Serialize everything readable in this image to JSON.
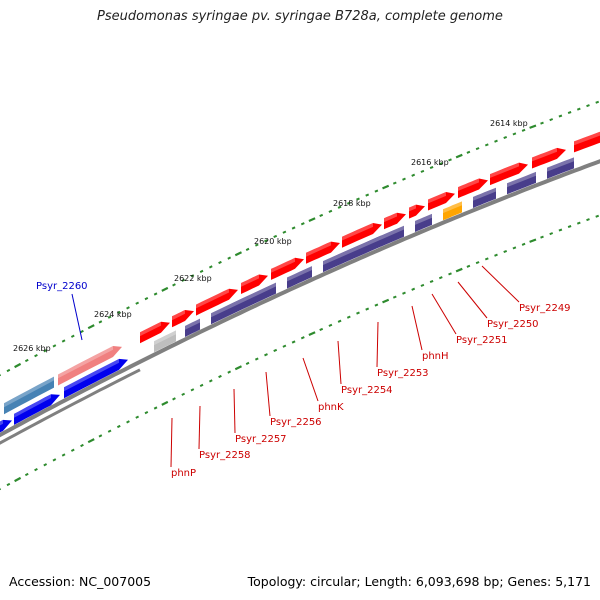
{
  "title": "Pseudomonas syringae pv. syringae B728a, complete genome",
  "footer": {
    "accession": "Accession: NC_007005",
    "summary": "Topology: circular; Length: 6,093,698 bp; Genes: 5,171"
  },
  "colors": {
    "scale_dots": "#2e8b2e",
    "backbone": "#808080",
    "gene_red": "#ff0000",
    "gene_pink": "#f08080",
    "gene_blue": "#0000ee",
    "gene_steel": "#4682b4",
    "gene_navy": "#483d8b",
    "gene_orange": "#ffa500",
    "gene_gray": "#bebebe",
    "label_red": "#cc0000",
    "label_blue": "#0000cc"
  },
  "scale": {
    "unit": "kbp",
    "ticks": [
      {
        "label": "2614 kbp"
      },
      {
        "label": "2616 kbp"
      },
      {
        "label": "2618 kbp"
      },
      {
        "label": "2620 kbp"
      },
      {
        "label": "2622 kbp"
      },
      {
        "label": "2624 kbp"
      },
      {
        "label": "2626 kbp"
      }
    ]
  },
  "gene_labels": [
    {
      "name": "Psyr_2260",
      "color": "label_blue"
    },
    {
      "name": "phnP",
      "color": "label_red"
    },
    {
      "name": "Psyr_2258",
      "color": "label_red"
    },
    {
      "name": "Psyr_2257",
      "color": "label_red"
    },
    {
      "name": "Psyr_2256",
      "color": "label_red"
    },
    {
      "name": "phnK",
      "color": "label_red"
    },
    {
      "name": "Psyr_2254",
      "color": "label_red"
    },
    {
      "name": "Psyr_2253",
      "color": "label_red"
    },
    {
      "name": "phnH",
      "color": "label_red"
    },
    {
      "name": "Psyr_2251",
      "color": "label_red"
    },
    {
      "name": "Psyr_2250",
      "color": "label_red"
    },
    {
      "name": "Psyr_2249",
      "color": "label_red"
    }
  ]
}
